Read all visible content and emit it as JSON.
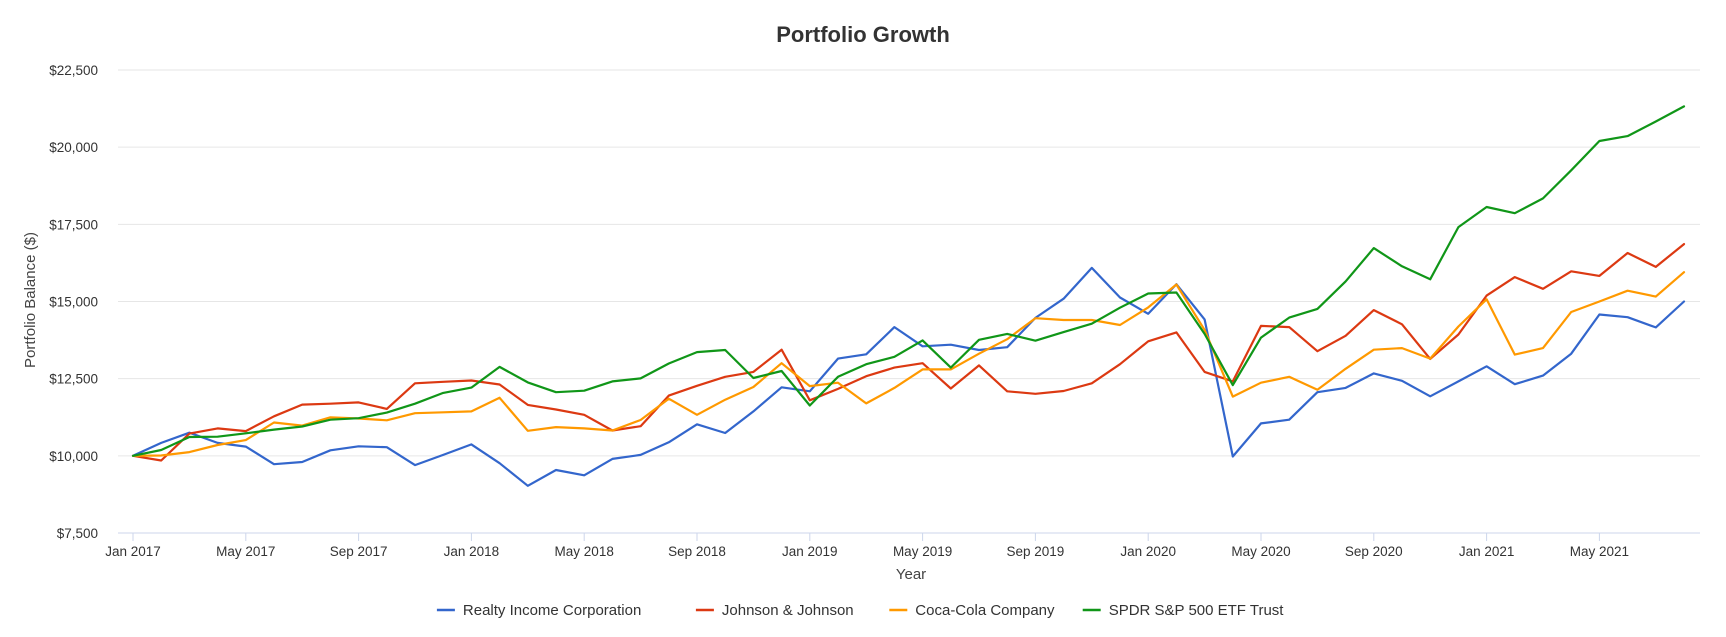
{
  "chart_data": {
    "type": "line",
    "title": "Portfolio Growth",
    "xlabel": "Year",
    "ylabel": "Portfolio Balance ($)",
    "ylim": [
      7500,
      22500
    ],
    "yticks": [
      {
        "value": 7500,
        "label": "$7,500"
      },
      {
        "value": 10000,
        "label": "$10,000"
      },
      {
        "value": 12500,
        "label": "$12,500"
      },
      {
        "value": 15000,
        "label": "$15,000"
      },
      {
        "value": 17500,
        "label": "$17,500"
      },
      {
        "value": 20000,
        "label": "$20,000"
      },
      {
        "value": 22500,
        "label": "$22,500"
      }
    ],
    "xticks": [
      {
        "index": 0,
        "label": "Jan 2017"
      },
      {
        "index": 4,
        "label": "May 2017"
      },
      {
        "index": 8,
        "label": "Sep 2017"
      },
      {
        "index": 12,
        "label": "Jan 2018"
      },
      {
        "index": 16,
        "label": "May 2018"
      },
      {
        "index": 20,
        "label": "Sep 2018"
      },
      {
        "index": 24,
        "label": "Jan 2019"
      },
      {
        "index": 28,
        "label": "May 2019"
      },
      {
        "index": 32,
        "label": "Sep 2019"
      },
      {
        "index": 36,
        "label": "Jan 2020"
      },
      {
        "index": 40,
        "label": "May 2020"
      },
      {
        "index": 44,
        "label": "Sep 2020"
      },
      {
        "index": 48,
        "label": "Jan 2021"
      },
      {
        "index": 52,
        "label": "May 2021"
      }
    ],
    "x": [
      "Jan 2017",
      "Feb 2017",
      "Mar 2017",
      "Apr 2017",
      "May 2017",
      "Jun 2017",
      "Jul 2017",
      "Aug 2017",
      "Sep 2017",
      "Oct 2017",
      "Nov 2017",
      "Dec 2017",
      "Jan 2018",
      "Feb 2018",
      "Mar 2018",
      "Apr 2018",
      "May 2018",
      "Jun 2018",
      "Jul 2018",
      "Aug 2018",
      "Sep 2018",
      "Oct 2018",
      "Nov 2018",
      "Dec 2018",
      "Jan 2019",
      "Feb 2019",
      "Mar 2019",
      "Apr 2019",
      "May 2019",
      "Jun 2019",
      "Jul 2019",
      "Aug 2019",
      "Sep 2019",
      "Oct 2019",
      "Nov 2019",
      "Dec 2019",
      "Jan 2020",
      "Feb 2020",
      "Mar 2020",
      "Apr 2020",
      "May 2020",
      "Jun 2020",
      "Jul 2020",
      "Aug 2020",
      "Sep 2020",
      "Oct 2020",
      "Nov 2020",
      "Dec 2020",
      "Jan 2021",
      "Feb 2021",
      "Mar 2021",
      "Apr 2021",
      "May 2021",
      "Jun 2021",
      "Jul 2021",
      "Aug 2021"
    ],
    "grid": true,
    "legend_position": "bottom-center",
    "series": [
      {
        "name": "Realty Income Corporation",
        "color": "#3366cc",
        "values": [
          10000,
          10420,
          10750,
          10420,
          10300,
          9730,
          9800,
          10180,
          10310,
          10280,
          9700,
          10030,
          10370,
          9760,
          9030,
          9540,
          9370,
          9900,
          10030,
          10440,
          11020,
          10740,
          11440,
          12220,
          12090,
          13150,
          13290,
          14170,
          13550,
          13600,
          13430,
          13520,
          14470,
          15090,
          16090,
          15130,
          14600,
          15560,
          14420,
          9980,
          11050,
          11170,
          12060,
          12200,
          12670,
          12430,
          11930,
          12410,
          12900,
          12320,
          12600,
          13310,
          14580,
          14490,
          14160,
          15000
        ]
      },
      {
        "name": "Johnson & Johnson",
        "color": "#dc3912",
        "values": [
          10000,
          9850,
          10720,
          10890,
          10800,
          11280,
          11660,
          11690,
          11730,
          11520,
          12350,
          12400,
          12440,
          12310,
          11650,
          11500,
          11330,
          10820,
          10960,
          11950,
          12270,
          12560,
          12720,
          13440,
          11800,
          12170,
          12580,
          12860,
          13000,
          12180,
          12930,
          12090,
          12010,
          12100,
          12350,
          12970,
          13710,
          14000,
          12720,
          12410,
          14210,
          14170,
          13390,
          13890,
          14720,
          14260,
          13140,
          13930,
          15190,
          15790,
          15410,
          15980,
          15830,
          16570,
          16120,
          16860
        ]
      },
      {
        "name": "Coca-Cola Company",
        "color": "#ff9900",
        "values": [
          10000,
          10010,
          10120,
          10350,
          10510,
          11080,
          10980,
          11250,
          11210,
          11150,
          11380,
          11410,
          11440,
          11880,
          10810,
          10930,
          10890,
          10820,
          11160,
          11850,
          11330,
          11820,
          12230,
          13000,
          12260,
          12370,
          11700,
          12200,
          12800,
          12800,
          13310,
          13780,
          14460,
          14400,
          14400,
          14240,
          14810,
          15550,
          14080,
          11920,
          12370,
          12560,
          12140,
          12820,
          13440,
          13490,
          13150,
          14190,
          15070,
          13280,
          13490,
          14660,
          15000,
          15350,
          15160,
          15950
        ]
      },
      {
        "name": "SPDR S&P 500 ETF Trust",
        "color": "#109618",
        "values": [
          10000,
          10190,
          10610,
          10620,
          10730,
          10850,
          10950,
          11170,
          11220,
          11400,
          11690,
          12040,
          12210,
          12880,
          12380,
          12060,
          12110,
          12410,
          12510,
          12990,
          13360,
          13430,
          12520,
          12750,
          11630,
          12560,
          12970,
          13210,
          13740,
          12860,
          13760,
          13950,
          13730,
          14010,
          14280,
          14800,
          15260,
          15290,
          13950,
          12290,
          13830,
          14480,
          14760,
          15650,
          16730,
          16140,
          15720,
          17410,
          18060,
          17860,
          18340,
          19250,
          20200,
          20360,
          20830,
          21320
        ]
      }
    ]
  }
}
